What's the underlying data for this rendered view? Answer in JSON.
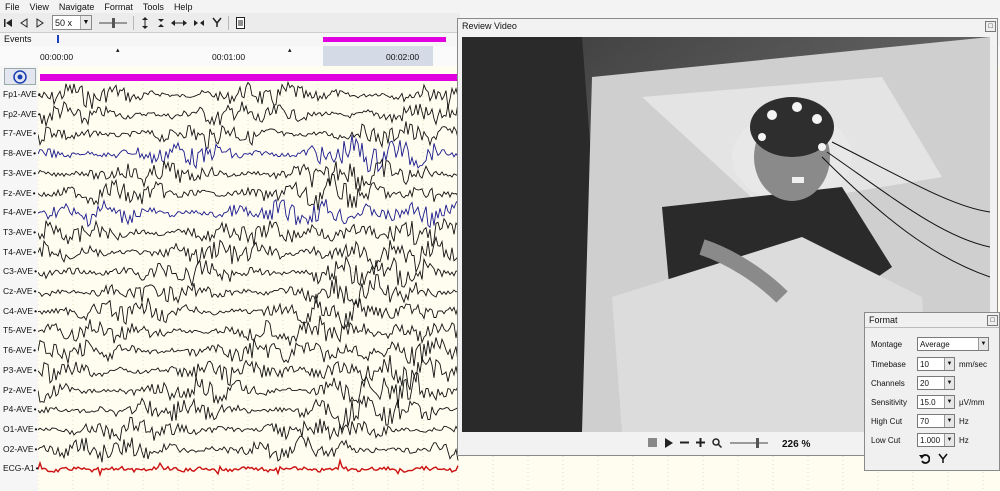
{
  "menu": {
    "items": [
      "File",
      "View",
      "Navigate",
      "Format",
      "Tools",
      "Help"
    ]
  },
  "toolbar": {
    "speed_value": "50 x"
  },
  "events": {
    "label": "Events"
  },
  "timeline": {
    "labels": [
      "00:00:00",
      "00:01:00",
      "00:02:00"
    ]
  },
  "channels": [
    "Fp1-AVE",
    "Fp2-AVE",
    "F7-AVE",
    "F8-AVE",
    "F3-AVE",
    "Fz-AVE",
    "F4-AVE",
    "T3-AVE",
    "T4-AVE",
    "C3-AVE",
    "Cz-AVE",
    "C4-AVE",
    "T5-AVE",
    "T6-AVE",
    "P3-AVE",
    "Pz-AVE",
    "P4-AVE",
    "O1-AVE",
    "O2-AVE",
    "ECG-A1"
  ],
  "channel_colors": {
    "default": "#111111",
    "highlight": "#1a1a8c",
    "ecg": "#cc1111",
    "event": "#e000e0"
  },
  "video": {
    "title": "Review Video",
    "zoom": "226 %"
  },
  "format_panel": {
    "title": "Format",
    "montage_label": "Montage",
    "montage_value": "Average",
    "timebase_label": "Timebase",
    "timebase_value": "10",
    "timebase_unit": "mm/sec",
    "channels_label": "Channels",
    "channels_value": "20",
    "sensitivity_label": "Sensitivity",
    "sensitivity_value": "15.0",
    "sensitivity_unit": "µV/mm",
    "highcut_label": "High Cut",
    "highcut_value": "70",
    "highcut_unit": "Hz",
    "lowcut_label": "Low Cut",
    "lowcut_value": "1.000",
    "lowcut_unit": "Hz"
  }
}
